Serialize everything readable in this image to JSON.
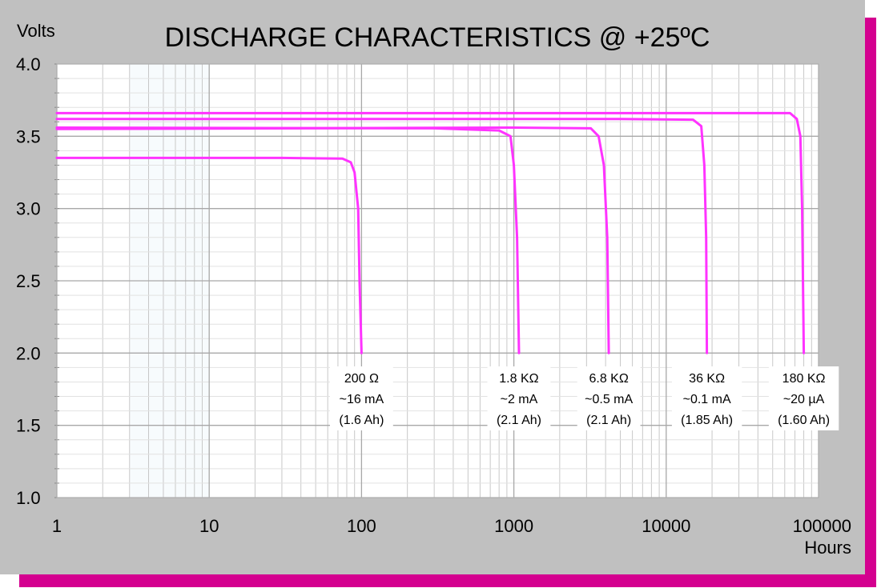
{
  "chart_data": {
    "type": "line",
    "title": "DISCHARGE CHARACTERISTICS @ +25ºC",
    "ylabel": "Volts",
    "xlabel": "Hours",
    "xscale": "log",
    "xlim": [
      1,
      100000
    ],
    "ylim": [
      1.0,
      4.0
    ],
    "x_ticks": [
      "1",
      "10",
      "100",
      "1000",
      "10000",
      "100000"
    ],
    "y_ticks": [
      "1.0",
      "1.5",
      "2.0",
      "2.5",
      "3.0",
      "3.5",
      "4.0"
    ],
    "grid": true,
    "line_color": "#ff33ff",
    "series": [
      {
        "points": [
          [
            1,
            3.35
          ],
          [
            30,
            3.35
          ],
          [
            75,
            3.345
          ],
          [
            85,
            3.32
          ],
          [
            90,
            3.25
          ],
          [
            95,
            3.0
          ],
          [
            97,
            2.5
          ],
          [
            100,
            2.0
          ]
        ],
        "labels": [
          "200 Ω",
          "~16 mA",
          "(1.6 Ah)"
        ]
      },
      {
        "points": [
          [
            1,
            3.56
          ],
          [
            300,
            3.555
          ],
          [
            800,
            3.54
          ],
          [
            950,
            3.5
          ],
          [
            1000,
            3.3
          ],
          [
            1050,
            2.8
          ],
          [
            1080,
            2.0
          ]
        ],
        "labels": [
          "1.8 KΩ",
          "~2 mA",
          "(2.1 Ah)"
        ]
      },
      {
        "points": [
          [
            1,
            3.55
          ],
          [
            1000,
            3.56
          ],
          [
            3200,
            3.555
          ],
          [
            3600,
            3.5
          ],
          [
            3900,
            3.3
          ],
          [
            4100,
            2.8
          ],
          [
            4200,
            2.0
          ]
        ],
        "labels": [
          "6.8 KΩ",
          "~0.5 mA",
          "(2.1 Ah)"
        ]
      },
      {
        "points": [
          [
            1,
            3.62
          ],
          [
            5000,
            3.62
          ],
          [
            15000,
            3.615
          ],
          [
            17000,
            3.57
          ],
          [
            17800,
            3.3
          ],
          [
            18300,
            2.8
          ],
          [
            18500,
            2.0
          ]
        ],
        "labels": [
          "36 KΩ",
          "~0.1 mA",
          "(1.85 Ah)"
        ]
      },
      {
        "points": [
          [
            1,
            3.66
          ],
          [
            20000,
            3.66
          ],
          [
            65000,
            3.66
          ],
          [
            72000,
            3.62
          ],
          [
            76000,
            3.5
          ],
          [
            78000,
            3.0
          ],
          [
            80000,
            2.0
          ]
        ],
        "labels": [
          "180 KΩ",
          "~20 µA",
          "(1.60 Ah)"
        ]
      }
    ]
  }
}
